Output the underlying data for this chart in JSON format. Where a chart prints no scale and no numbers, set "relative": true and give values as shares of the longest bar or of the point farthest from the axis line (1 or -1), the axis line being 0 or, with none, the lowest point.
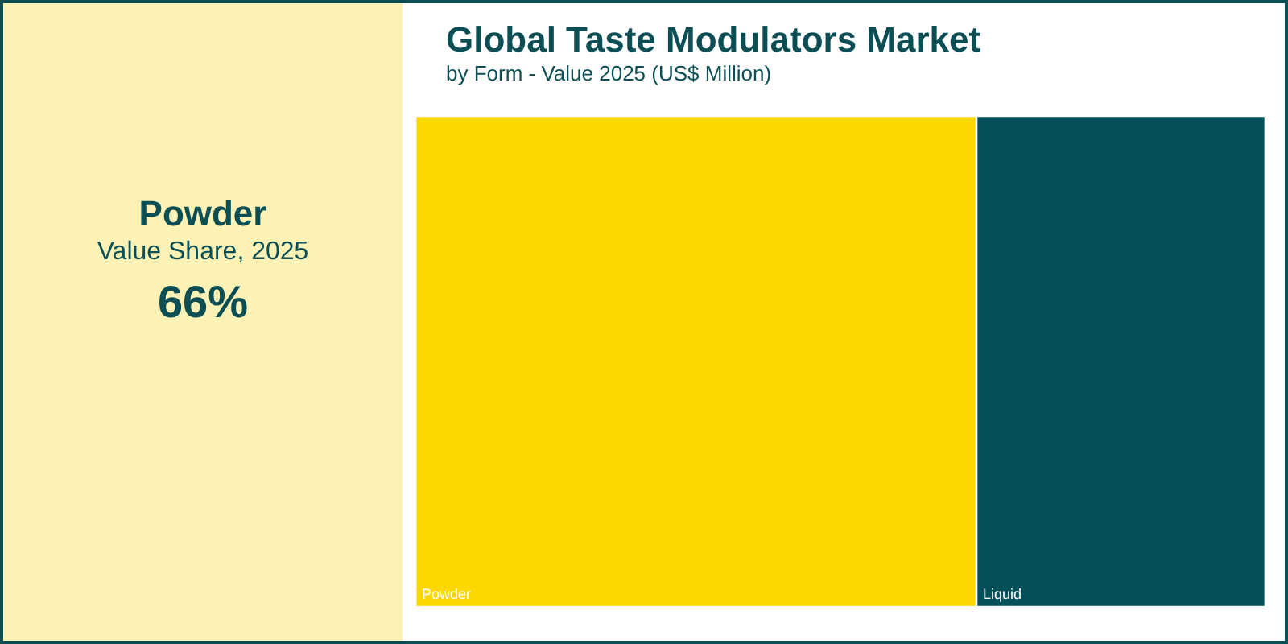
{
  "chart_data": {
    "type": "bar",
    "title": "Global Taste Modulators Market",
    "subtitle": "by Form - Value 2025 (US$ Million)",
    "orientation": "horizontal",
    "stacked": true,
    "relative": true,
    "legend": false,
    "categories": [
      null
    ],
    "series": [
      {
        "name": "Powder",
        "color": "#fdd700",
        "values": [
          0.66
        ]
      },
      {
        "name": "Liquid",
        "color": "#03505a",
        "values": [
          0.34
        ]
      }
    ],
    "annotations": [
      "Powder",
      "Value Share, 2025",
      "66%"
    ]
  }
}
